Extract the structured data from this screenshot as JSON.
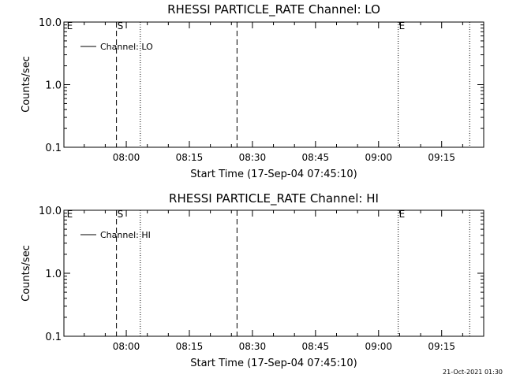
{
  "timestamp": "21-Oct-2021 01:30",
  "colors": {
    "background": "#ffffff",
    "foreground": "#000000"
  },
  "chart_data": [
    {
      "type": "line",
      "title": "RHESSI PARTICLE_RATE Channel: LO",
      "xlabel": "Start Time (17-Sep-04 07:45:10)",
      "ylabel": "Counts/sec",
      "yscale": "log",
      "ylim": [
        0.1,
        10.0
      ],
      "xlim": [
        "07:45:10",
        "09:25:00"
      ],
      "x_ticks": [
        "08:00",
        "08:15",
        "08:30",
        "08:45",
        "09:00",
        "09:15"
      ],
      "y_ticks": [
        "10.0",
        "1.0",
        "0.1"
      ],
      "grid": false,
      "legend": "top-left",
      "series": [
        {
          "name": "Channel: LO",
          "values": []
        }
      ],
      "markers": [
        {
          "time": "07:45:40",
          "label": "E",
          "style": "none"
        },
        {
          "time": "07:57:40",
          "label": "S",
          "style": "dashed"
        },
        {
          "time": "08:03:20",
          "label": "",
          "style": "dotted"
        },
        {
          "time": "08:26:20",
          "label": "",
          "style": "dashed"
        },
        {
          "time": "09:04:40",
          "label": "E",
          "style": "dotted"
        },
        {
          "time": "09:21:40",
          "label": "",
          "style": "dotted"
        }
      ]
    },
    {
      "type": "line",
      "title": "RHESSI PARTICLE_RATE Channel: HI",
      "xlabel": "Start Time (17-Sep-04 07:45:10)",
      "ylabel": "Counts/sec",
      "yscale": "log",
      "ylim": [
        0.1,
        10.0
      ],
      "xlim": [
        "07:45:10",
        "09:25:00"
      ],
      "x_ticks": [
        "08:00",
        "08:15",
        "08:30",
        "08:45",
        "09:00",
        "09:15"
      ],
      "y_ticks": [
        "10.0",
        "1.0",
        "0.1"
      ],
      "grid": false,
      "legend": "top-left",
      "series": [
        {
          "name": "Channel: HI",
          "values": []
        }
      ],
      "markers": [
        {
          "time": "07:45:40",
          "label": "E",
          "style": "none"
        },
        {
          "time": "07:57:40",
          "label": "S",
          "style": "dashed"
        },
        {
          "time": "08:03:20",
          "label": "",
          "style": "dotted"
        },
        {
          "time": "08:26:20",
          "label": "",
          "style": "dashed"
        },
        {
          "time": "09:04:40",
          "label": "E",
          "style": "dotted"
        },
        {
          "time": "09:21:40",
          "label": "",
          "style": "dotted"
        }
      ]
    }
  ]
}
